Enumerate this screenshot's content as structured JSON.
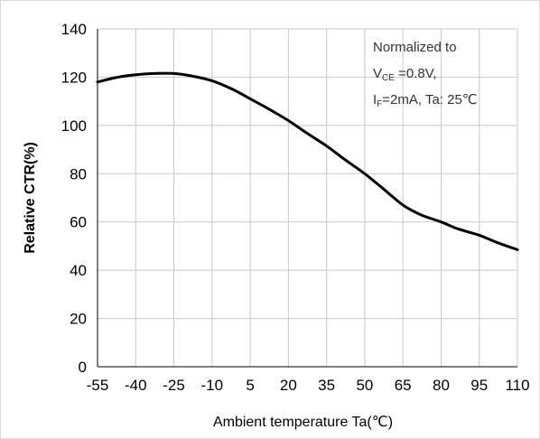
{
  "chart_data": {
    "type": "line",
    "title": "",
    "xlabel": "Ambient temperature Ta(℃)",
    "ylabel": "Relative CTR(%)",
    "xlim": [
      -55,
      110
    ],
    "ylim": [
      0,
      140
    ],
    "x_ticks": [
      "-55",
      "-40",
      "-25",
      "-10",
      "5",
      "20",
      "35",
      "50",
      "65",
      "80",
      "95",
      "110"
    ],
    "y_ticks": [
      "0",
      "20",
      "40",
      "60",
      "80",
      "100",
      "120",
      "140"
    ],
    "grid": true,
    "annotation": {
      "line1": "Normalized to",
      "line2_main": "V",
      "line2_sub": "CE",
      "line2_rest": " =0.8V,",
      "line3_main": "I",
      "line3_sub": "F",
      "line3_rest": "=2mA, Ta: 25℃"
    },
    "series": [
      {
        "x": [
          -55,
          -47,
          -40,
          -33,
          -25,
          -18,
          -10,
          -2,
          5,
          12,
          20,
          27,
          35,
          42,
          50,
          57,
          65,
          72,
          80,
          87,
          95,
          102,
          110
        ],
        "y": [
          118,
          120,
          121,
          121.5,
          121.5,
          120.5,
          118.5,
          115,
          111,
          107,
          102,
          97,
          91.5,
          86,
          80,
          74,
          67,
          63,
          60,
          57,
          54.5,
          51.5,
          48.5
        ]
      }
    ],
    "colors": {
      "line": "#000000",
      "grid": "#c8c8c8",
      "axis": "#000000"
    }
  }
}
